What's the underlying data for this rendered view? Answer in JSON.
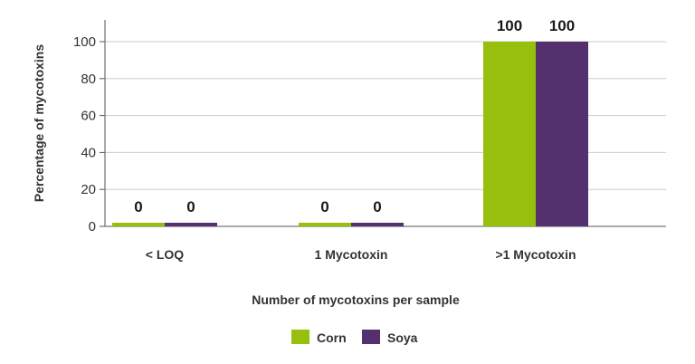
{
  "chart_data": {
    "type": "bar",
    "categories": [
      "< LOQ",
      "1 Mycotoxin",
      ">1 Mycotoxin"
    ],
    "series": [
      {
        "name": "Corn",
        "values": [
          0,
          0,
          100
        ],
        "color": "#97bf0d"
      },
      {
        "name": "Soya",
        "values": [
          0,
          0,
          100
        ],
        "color": "#54306e"
      }
    ],
    "data_labels": [
      [
        "0",
        "0",
        "100"
      ],
      [
        "0",
        "0",
        "100"
      ]
    ],
    "xlabel": "Number of mycotoxins per sample",
    "ylabel": "Percentage of mycotoxins",
    "ylim": [
      0,
      100
    ],
    "yticks": [
      "0",
      "20",
      "40",
      "60",
      "80",
      "100"
    ],
    "grid": true,
    "legend": "bottom-center"
  }
}
